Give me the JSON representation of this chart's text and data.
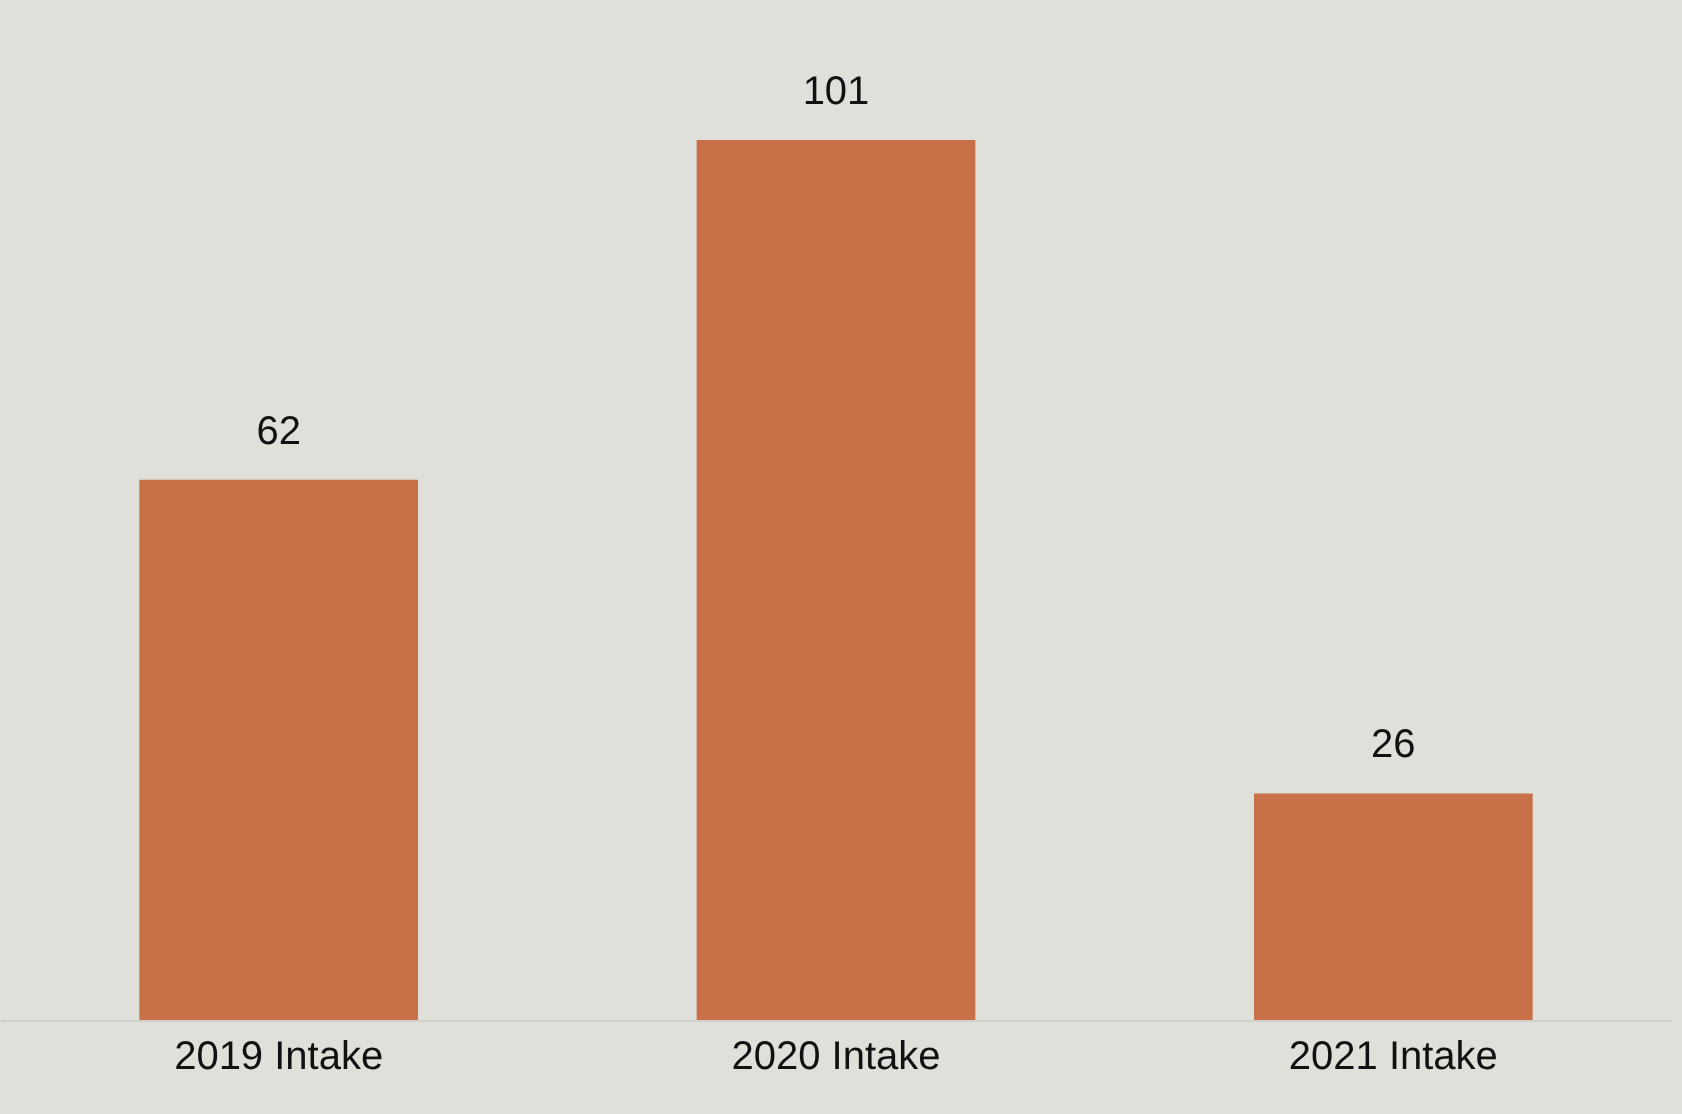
{
  "chart_data": {
    "type": "bar",
    "categories": [
      "2019 Intake",
      "2020 Intake",
      "2021 Intake"
    ],
    "values": [
      62,
      101,
      26
    ],
    "color": "#c87047",
    "data_labels": true
  }
}
